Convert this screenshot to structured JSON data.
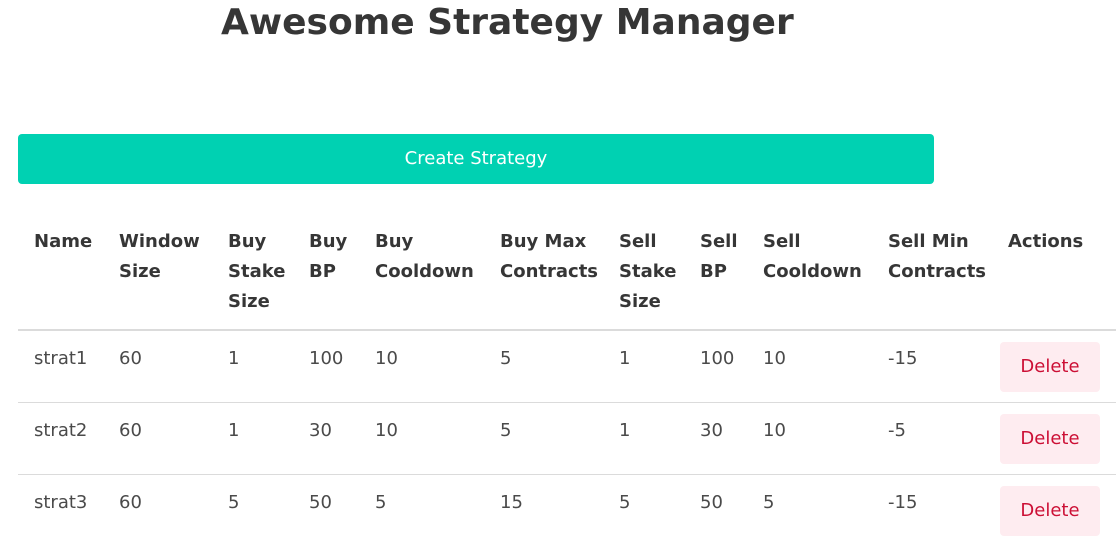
{
  "header": {
    "title": "Awesome Strategy Manager"
  },
  "toolbar": {
    "create_label": "Create Strategy"
  },
  "table": {
    "columns": [
      [
        "Name"
      ],
      [
        "Window",
        "Size"
      ],
      [
        "Buy",
        "Stake",
        "Size"
      ],
      [
        "Buy",
        "BP"
      ],
      [
        "Buy",
        "Cooldown"
      ],
      [
        "Buy Max",
        "Contracts"
      ],
      [
        "Sell",
        "Stake",
        "Size"
      ],
      [
        "Sell",
        "BP"
      ],
      [
        "Sell",
        "Cooldown"
      ],
      [
        "Sell Min",
        "Contracts"
      ],
      [
        "Actions"
      ]
    ],
    "rows": [
      {
        "name": "strat1",
        "window_size": "60",
        "buy_stake_size": "1",
        "buy_bp": "100",
        "buy_cooldown": "10",
        "buy_max_contracts": "5",
        "sell_stake_size": "1",
        "sell_bp": "100",
        "sell_cooldown": "10",
        "sell_min_contracts": "-15",
        "action_label": "Delete"
      },
      {
        "name": "strat2",
        "window_size": "60",
        "buy_stake_size": "1",
        "buy_bp": "30",
        "buy_cooldown": "10",
        "buy_max_contracts": "5",
        "sell_stake_size": "1",
        "sell_bp": "30",
        "sell_cooldown": "10",
        "sell_min_contracts": "-5",
        "action_label": "Delete"
      },
      {
        "name": "strat3",
        "window_size": "60",
        "buy_stake_size": "5",
        "buy_bp": "50",
        "buy_cooldown": "5",
        "buy_max_contracts": "15",
        "sell_stake_size": "5",
        "sell_bp": "50",
        "sell_cooldown": "5",
        "sell_min_contracts": "-15",
        "action_label": "Delete"
      }
    ]
  },
  "colors": {
    "primary": "#00d1b2",
    "danger_text": "#cc0f35",
    "danger_bg": "#feecf0"
  }
}
